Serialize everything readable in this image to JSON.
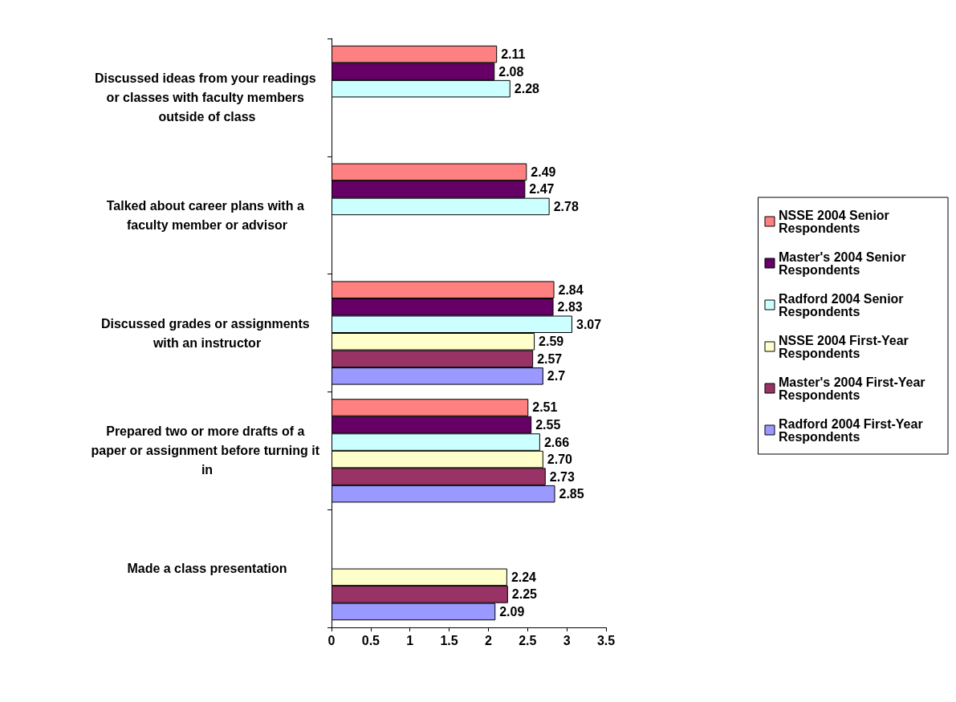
{
  "chart_data": {
    "type": "bar",
    "orientation": "horizontal",
    "categories": [
      "Discussed ideas from your readings or classes with faculty members outside of class",
      "Talked about career plans with a faculty member or advisor",
      "Discussed grades or assignments with an instructor",
      "Prepared two or more drafts of a paper or assignment before turning it in",
      "Made a class presentation"
    ],
    "series": [
      {
        "name": "NSSE 2004 Senior Respondents",
        "color": "#ff8080",
        "values": [
          2.11,
          2.49,
          2.84,
          2.51,
          null
        ],
        "value_labels": [
          "2.11",
          "2.49",
          "2.84",
          "2.51",
          null
        ]
      },
      {
        "name": "Master's 2004 Senior Respondents",
        "color": "#660066",
        "values": [
          2.08,
          2.47,
          2.83,
          2.55,
          null
        ],
        "value_labels": [
          "2.08",
          "2.47",
          "2.83",
          "2.55",
          null
        ]
      },
      {
        "name": "Radford 2004 Senior Respondents",
        "color": "#ccffff",
        "values": [
          2.28,
          2.78,
          3.07,
          2.66,
          null
        ],
        "value_labels": [
          "2.28",
          "2.78",
          "3.07",
          "2.66",
          null
        ]
      },
      {
        "name": "NSSE 2004 First-Year Respondents",
        "color": "#ffffcc",
        "values": [
          null,
          null,
          2.59,
          2.7,
          2.24
        ],
        "value_labels": [
          null,
          null,
          "2.59",
          "2.70",
          "2.24"
        ]
      },
      {
        "name": "Master's 2004 First-Year Respondents",
        "color": "#993366",
        "values": [
          null,
          null,
          2.57,
          2.73,
          2.25
        ],
        "value_labels": [
          null,
          null,
          "2.57",
          "2.73",
          "2.25"
        ]
      },
      {
        "name": "Radford 2004 First-Year Respondents",
        "color": "#9999ff",
        "values": [
          null,
          null,
          2.7,
          2.85,
          2.09
        ],
        "value_labels": [
          null,
          null,
          "2.7",
          "2.85",
          "2.09"
        ]
      }
    ],
    "xlim": [
      0,
      3.5
    ],
    "xticks": [
      0,
      0.5,
      1,
      1.5,
      2,
      2.5,
      3,
      3.5
    ],
    "grid": false,
    "legend": "right"
  }
}
